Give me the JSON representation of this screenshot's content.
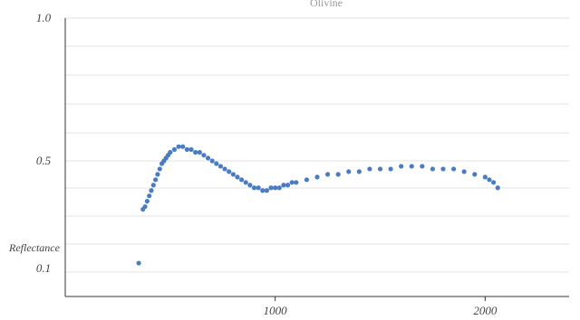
{
  "chart_data": {
    "type": "scatter",
    "title": "Olivine",
    "xlabel": "",
    "ylabel": "Reflectance",
    "grid": true,
    "legend": "none",
    "colors": {
      "points": "#4a7cc4",
      "grid": "#e3e3e3",
      "axis": "#333333"
    },
    "y_ticks": [
      {
        "value": 1.0,
        "label": "1.0"
      },
      {
        "value": 0.5,
        "label": "0.5"
      },
      {
        "value": 0.1,
        "label": "0.1"
      }
    ],
    "x_ticks": [
      {
        "value": 1000,
        "label": "1000"
      },
      {
        "value": 2000,
        "label": "2000"
      }
    ],
    "xlim": [
      0,
      2400
    ],
    "ylim": [
      0.1,
      1.0
    ],
    "series": [
      {
        "x": [
          350,
          370,
          380,
          390,
          400,
          410,
          420,
          430,
          440,
          450,
          460,
          470,
          480,
          490,
          500,
          520,
          540,
          560,
          580,
          600,
          620,
          640,
          660,
          680,
          700,
          720,
          740,
          760,
          780,
          800,
          820,
          840,
          860,
          880,
          900,
          920,
          940,
          960,
          980,
          1000,
          1020,
          1040,
          1060,
          1080,
          1100,
          1150,
          1200,
          1250,
          1300,
          1350,
          1400,
          1450,
          1500,
          1550,
          1600,
          1650,
          1700,
          1750,
          1800,
          1850,
          1900,
          1950,
          2000,
          2020,
          2040,
          2060
        ],
        "y": [
          0.12,
          0.32,
          0.33,
          0.35,
          0.37,
          0.39,
          0.41,
          0.43,
          0.45,
          0.47,
          0.49,
          0.5,
          0.51,
          0.52,
          0.53,
          0.54,
          0.55,
          0.55,
          0.54,
          0.54,
          0.53,
          0.53,
          0.52,
          0.51,
          0.5,
          0.49,
          0.48,
          0.47,
          0.46,
          0.45,
          0.44,
          0.43,
          0.42,
          0.41,
          0.4,
          0.4,
          0.39,
          0.39,
          0.4,
          0.4,
          0.4,
          0.41,
          0.41,
          0.42,
          0.42,
          0.43,
          0.44,
          0.45,
          0.45,
          0.46,
          0.46,
          0.47,
          0.47,
          0.47,
          0.48,
          0.48,
          0.48,
          0.47,
          0.47,
          0.47,
          0.46,
          0.45,
          0.44,
          0.43,
          0.42,
          0.4
        ]
      }
    ]
  }
}
